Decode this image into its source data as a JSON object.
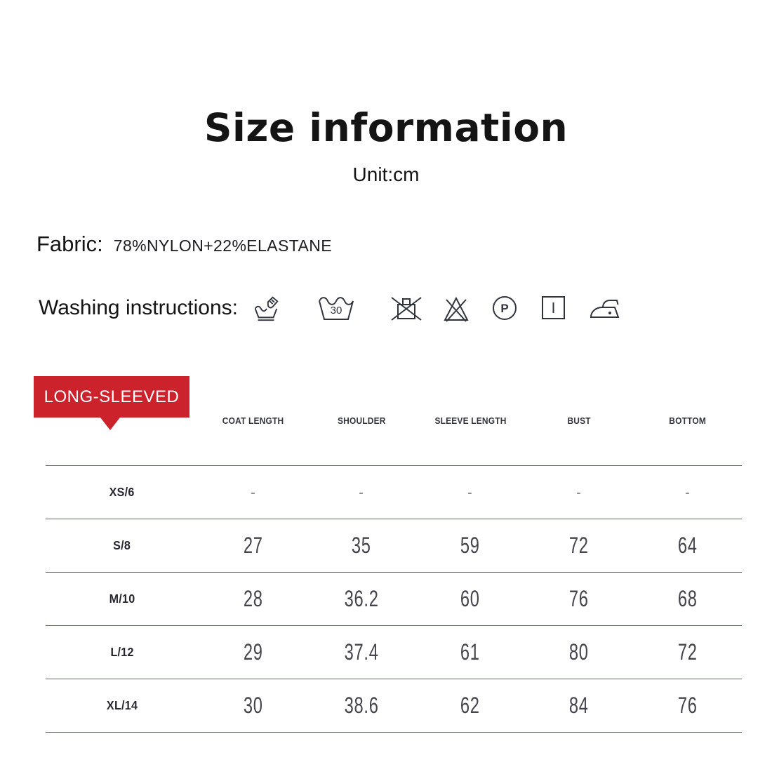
{
  "page": {
    "title": "Size information",
    "unit": "Unit:cm"
  },
  "fabric": {
    "label": "Fabric:",
    "value": "78%NYLON+22%ELASTANE"
  },
  "washing": {
    "label": "Washing instructions:",
    "icons": [
      {
        "name": "hand-wash-icon"
      },
      {
        "name": "machine-wash-30-icon",
        "text": "30"
      },
      {
        "name": "do-not-wring-icon"
      },
      {
        "name": "do-not-bleach-icon"
      },
      {
        "name": "dry-clean-p-icon",
        "text": "P"
      },
      {
        "name": "drip-dry-icon"
      },
      {
        "name": "iron-low-heat-icon"
      }
    ]
  },
  "size_table": {
    "badge_label": "LONG-SLEEVED",
    "columns": [
      "COAT LENGTH",
      "SHOULDER",
      "SLEEVE LENGTH",
      "BUST",
      "BOTTOM"
    ],
    "rows": [
      {
        "size": "XS/6",
        "values": [
          "-",
          "-",
          "-",
          "-",
          "-"
        ]
      },
      {
        "size": "S/8",
        "values": [
          "27",
          "35",
          "59",
          "72",
          "64"
        ]
      },
      {
        "size": "M/10",
        "values": [
          "28",
          "36.2",
          "60",
          "76",
          "68"
        ]
      },
      {
        "size": "L/12",
        "values": [
          "29",
          "37.4",
          "61",
          "80",
          "72"
        ]
      },
      {
        "size": "XL/14",
        "values": [
          "30",
          "38.6",
          "62",
          "84",
          "76"
        ]
      }
    ]
  },
  "colors": {
    "accent_red": "#cb222c",
    "divider_red": "#c43a40",
    "title_text": "#141414",
    "table_text": "#44444c",
    "muted_dash": "#8d8d95",
    "icon_stroke": "#2f343d"
  }
}
